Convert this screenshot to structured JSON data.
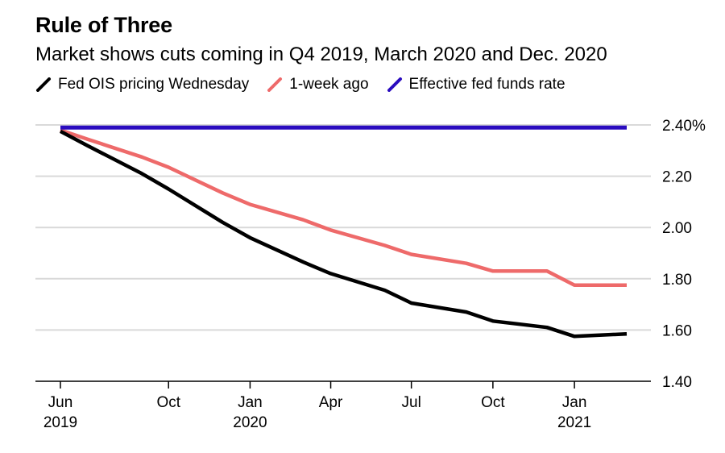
{
  "title": "Rule of Three",
  "subtitle": "Market shows cuts coming in Q4 2019, March 2020 and Dec. 2020",
  "legend": [
    {
      "name": "Fed OIS pricing Wednesday",
      "color": "#000000"
    },
    {
      "name": "1-week ago",
      "color": "#ee6a6a"
    },
    {
      "name": "Effective fed funds rate",
      "color": "#2a0cbf"
    }
  ],
  "chart_data": {
    "type": "line",
    "x": [
      "2019-06",
      "2019-07",
      "2019-09",
      "2019-10",
      "2019-12",
      "2020-01",
      "2020-03",
      "2020-04",
      "2020-06",
      "2020-07",
      "2020-09",
      "2020-10",
      "2020-12",
      "2021-01",
      "2021-03"
    ],
    "series": [
      {
        "name": "Fed OIS pricing Wednesday",
        "color": "#000000",
        "values": [
          2.375,
          2.32,
          2.21,
          2.15,
          2.02,
          1.96,
          1.865,
          1.82,
          1.755,
          1.705,
          1.67,
          1.635,
          1.61,
          1.575,
          1.585
        ]
      },
      {
        "name": "1-week ago",
        "color": "#ee6a6a",
        "values": [
          2.38,
          2.345,
          2.275,
          2.235,
          2.135,
          2.09,
          2.03,
          1.99,
          1.93,
          1.895,
          1.86,
          1.83,
          1.83,
          1.775,
          1.775
        ]
      },
      {
        "name": "Effective fed funds rate",
        "color": "#2a0cbf",
        "values": [
          2.39,
          2.39,
          2.39,
          2.39,
          2.39,
          2.39,
          2.39,
          2.39,
          2.39,
          2.39,
          2.39,
          2.39,
          2.39,
          2.39,
          2.39
        ]
      }
    ],
    "ylim": [
      1.4,
      2.4
    ],
    "yticks": [
      {
        "value": 2.4,
        "label": "2.40%"
      },
      {
        "value": 2.2,
        "label": "2.20"
      },
      {
        "value": 2.0,
        "label": "2.00"
      },
      {
        "value": 1.8,
        "label": "1.80"
      },
      {
        "value": 1.6,
        "label": "1.60"
      },
      {
        "value": 1.4,
        "label": "1.40"
      }
    ],
    "xticks": [
      {
        "date": "2019-06",
        "label": "Jun",
        "sublabel": "2019"
      },
      {
        "date": "2019-10",
        "label": "Oct",
        "sublabel": ""
      },
      {
        "date": "2020-01",
        "label": "Jan",
        "sublabel": "2020"
      },
      {
        "date": "2020-04",
        "label": "Apr",
        "sublabel": ""
      },
      {
        "date": "2020-07",
        "label": "Jul",
        "sublabel": ""
      },
      {
        "date": "2020-10",
        "label": "Oct",
        "sublabel": ""
      },
      {
        "date": "2021-01",
        "label": "Jan",
        "sublabel": "2021"
      }
    ],
    "grid": true,
    "legend_position": "top"
  }
}
